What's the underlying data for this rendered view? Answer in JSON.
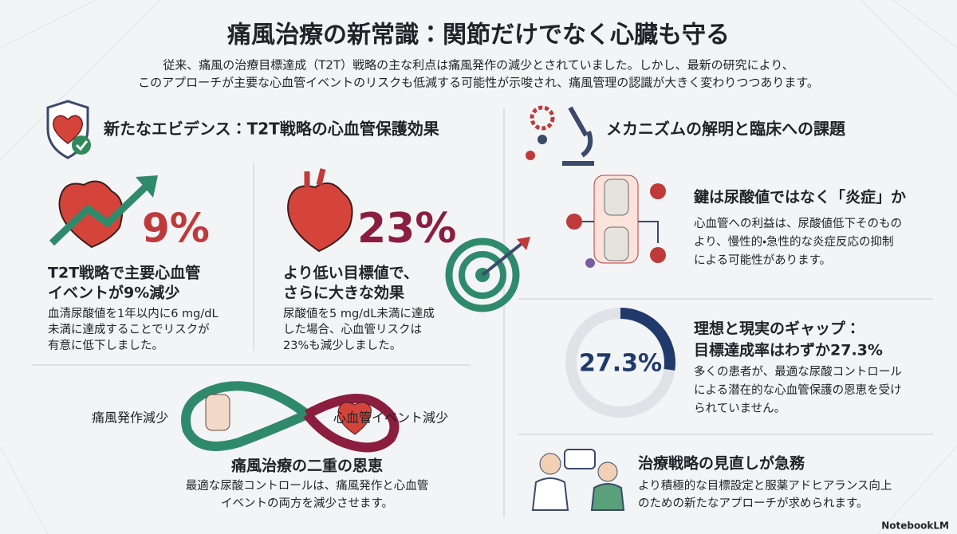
{
  "header": {
    "title": "痛風治療の新常識：関節だけでなく心臓も守る",
    "subtitle": [
      "従来、痛風の治療目標達成（T2T）戦略の主な利点は痛風発作の減少とされていました。しかし、最新の研究により、",
      "このアプローチが主要な心血管イベントのリスクも低減する可能性が示唆され、痛風管理の認識が大きく変わりつつあります。"
    ]
  },
  "evidence": {
    "heading": "新たなエビデンス：T2T戦略の心血管保護効果",
    "cards": [
      {
        "stat": "9%",
        "title": [
          "T2T戦略で主要心血管",
          "イベントが9%減少"
        ],
        "body": [
          "血清尿酸値を1年以内に6 mg/dL",
          "未満に達成することでリスクが",
          "有意に低下しました。"
        ]
      },
      {
        "stat": "23%",
        "title": [
          "より低い目標値で、",
          "さらに大きな効果"
        ],
        "body": [
          "尿酸値を5 mg/dL未満に達成",
          "した場合、心血管リスクは",
          "23%も減少しました。"
        ]
      }
    ],
    "dual": {
      "left_label": "痛風発作減少",
      "right_label": "心血管イベント減少",
      "title": "痛風治療の二重の恩恵",
      "body": [
        "最適な尿酸コントロールは、痛風発作と心血管",
        "イベントの両方を減少させます。"
      ]
    }
  },
  "mechanism": {
    "heading": "メカニズムの解明と臨床への課題",
    "items": [
      {
        "title": [
          "鍵は尿酸値ではなく「炎症」か"
        ],
        "body": [
          "心血管への利益は、尿酸値低下そのもの",
          "より、慢性的・急性的な炎症反応の抑制",
          "による可能性があります。"
        ]
      },
      {
        "title": [
          "理想と現実のギャップ：",
          "目標達成率はわずか27.3%"
        ],
        "body": [
          "多くの患者が、最適な尿酸コントロール",
          "による潜在的な心血管保護の恩恵を受け",
          "られていません。"
        ]
      },
      {
        "title": [
          "治療戦略の見直しが急務"
        ],
        "body": [
          "より積極的な目標設定と服薬アドヒアランス向上",
          "のための新たなアプローチが求められます。"
        ]
      }
    ],
    "donut": {
      "value": 27.3,
      "label": "27.3%"
    }
  },
  "watermark": "NotebookLM"
}
